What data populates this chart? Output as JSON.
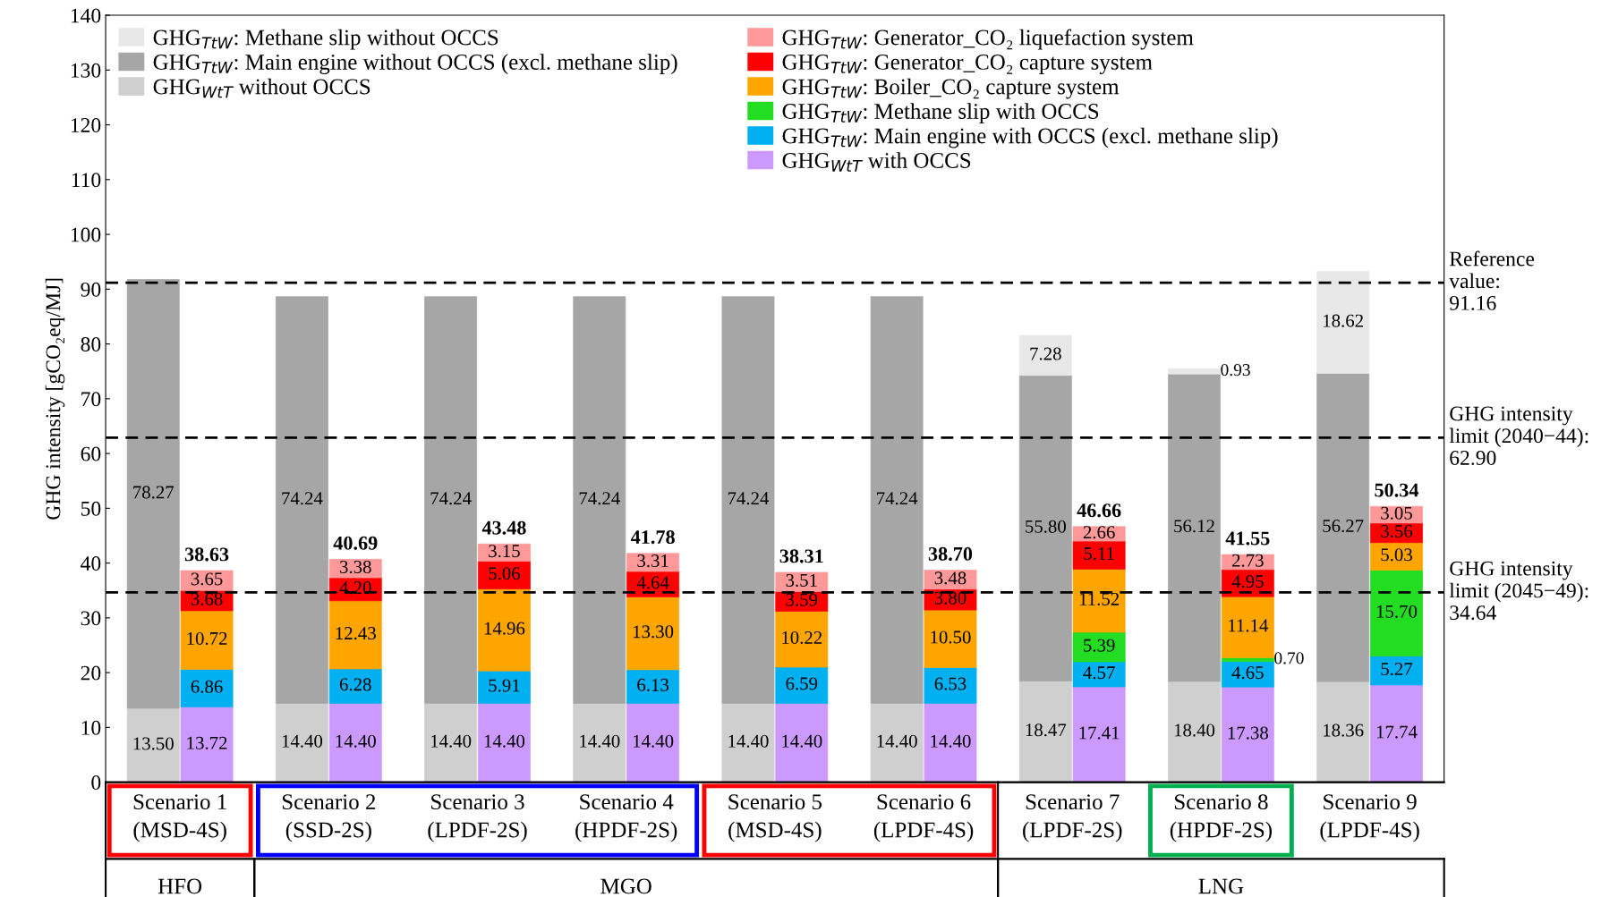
{
  "chart_data": {
    "type": "bar",
    "stacked": true,
    "ylabel": "GHG intensity [gCO₂eq/MJ]",
    "categories": [
      null,
      null,
      null,
      null,
      null,
      null,
      null,
      null,
      null,
      null,
      null,
      null,
      null,
      null,
      null,
      null,
      null,
      null
    ],
    "series": [
      {
        "name": "GHG$_{WtT}$ without OCCS",
        "color": "#cfcfcf",
        "values": [
          13.5,
          null,
          14.4,
          null,
          14.4,
          null,
          14.4,
          null,
          14.4,
          null,
          14.4,
          null,
          18.47,
          null,
          18.4,
          null,
          18.36,
          null
        ],
        "value_labels": [
          "13.50",
          null,
          "14.40",
          null,
          "14.40",
          null,
          "14.40",
          null,
          "14.40",
          null,
          "14.40",
          null,
          "18.47",
          null,
          "18.40",
          null,
          "18.36",
          null
        ]
      },
      {
        "name": "GHG$_{TtW}$: Main engine without OCCS (excl. methane slip)",
        "color": "#a6a6a6",
        "values": [
          78.27,
          null,
          74.24,
          null,
          74.24,
          null,
          74.24,
          null,
          74.24,
          null,
          74.24,
          null,
          55.8,
          null,
          56.12,
          null,
          56.27,
          null
        ],
        "value_labels": [
          "78.27",
          null,
          "74.24",
          null,
          "74.24",
          null,
          "74.24",
          null,
          "74.24",
          null,
          "74.24",
          null,
          "55.80",
          null,
          "56.12",
          null,
          "56.27",
          null
        ]
      },
      {
        "name": "GHG$_{TtW}$: Methane slip without OCCS",
        "color": "#e8e8e8",
        "values": [
          null,
          null,
          null,
          null,
          null,
          null,
          null,
          null,
          null,
          null,
          null,
          null,
          7.28,
          null,
          0.93,
          null,
          18.62,
          null
        ],
        "value_labels": [
          null,
          null,
          null,
          null,
          null,
          null,
          null,
          null,
          null,
          null,
          null,
          null,
          "7.28",
          null,
          "0.93",
          null,
          "18.62",
          null
        ]
      },
      {
        "name": "GHG$_{WtT}$ with OCCS",
        "color": "#cc99ff",
        "values": [
          null,
          13.72,
          null,
          14.4,
          null,
          14.4,
          null,
          14.4,
          null,
          14.4,
          null,
          14.4,
          null,
          17.41,
          null,
          17.38,
          null,
          17.74
        ],
        "value_labels": [
          null,
          "13.72",
          null,
          "14.40",
          null,
          "14.40",
          null,
          "14.40",
          null,
          "14.40",
          null,
          "14.40",
          null,
          "17.41",
          null,
          "17.38",
          null,
          "17.74"
        ]
      },
      {
        "name": "GHG$_{TtW}$: Main engine with OCCS (excl. methane slip)",
        "color": "#00b0f0",
        "values": [
          null,
          6.86,
          null,
          6.28,
          null,
          5.91,
          null,
          6.13,
          null,
          6.59,
          null,
          6.53,
          null,
          4.57,
          null,
          4.65,
          null,
          5.27
        ],
        "value_labels": [
          null,
          "6.86",
          null,
          "6.28",
          null,
          "5.91",
          null,
          "6.13",
          null,
          "6.59",
          null,
          "6.53",
          null,
          "4.57",
          null,
          "4.65",
          null,
          "5.27"
        ]
      },
      {
        "name": "GHG$_{TtW}$: Methane slip with OCCS",
        "color": "#22dd22",
        "values": [
          null,
          null,
          null,
          null,
          null,
          null,
          null,
          null,
          null,
          null,
          null,
          null,
          null,
          5.39,
          null,
          0.7,
          null,
          15.7
        ],
        "value_labels": [
          null,
          null,
          null,
          null,
          null,
          null,
          null,
          null,
          null,
          null,
          null,
          null,
          null,
          "5.39",
          null,
          "0.70",
          null,
          "15.70"
        ]
      },
      {
        "name": "GHG$_{TtW}$: Boiler_CO₂ capture system",
        "color": "#ffa500",
        "values": [
          null,
          10.72,
          null,
          12.43,
          null,
          14.96,
          null,
          13.3,
          null,
          10.22,
          null,
          10.5,
          null,
          11.52,
          null,
          11.14,
          null,
          5.03
        ],
        "value_labels": [
          null,
          "10.72",
          null,
          "12.43",
          null,
          "14.96",
          null,
          "13.30",
          null,
          "10.22",
          null,
          "10.50",
          null,
          "11.52",
          null,
          "11.14",
          null,
          "5.03"
        ]
      },
      {
        "name": "GHG$_{TtW}$: Generator_CO₂ capture system",
        "color": "#ff0000",
        "values": [
          null,
          3.68,
          null,
          4.2,
          null,
          5.06,
          null,
          4.64,
          null,
          3.59,
          null,
          3.8,
          null,
          5.11,
          null,
          4.95,
          null,
          3.56
        ],
        "value_labels": [
          null,
          "3.68",
          null,
          "4.20",
          null,
          "5.06",
          null,
          "4.64",
          null,
          "3.59",
          null,
          "3.80",
          null,
          "5.11",
          null,
          "4.95",
          null,
          "3.56"
        ]
      },
      {
        "name": "GHG$_{TtW}$: Generator_CO₂ liquefaction system",
        "color": "#ff9999",
        "values": [
          null,
          3.65,
          null,
          3.38,
          null,
          3.15,
          null,
          3.31,
          null,
          3.51,
          null,
          3.48,
          null,
          2.66,
          null,
          2.73,
          null,
          3.05
        ],
        "value_labels": [
          null,
          "3.65",
          null,
          "3.38",
          null,
          "3.15",
          null,
          "3.31",
          null,
          "3.51",
          null,
          "3.48",
          null,
          "2.66",
          null,
          "2.73",
          null,
          "3.05"
        ]
      }
    ],
    "totals": [
      null,
      "38.63",
      null,
      "40.69",
      null,
      "43.48",
      null,
      "41.78",
      null,
      "38.31",
      null,
      "38.70",
      null,
      "46.66",
      null,
      "41.55",
      null,
      "50.34"
    ],
    "ylim": [
      0,
      140
    ],
    "yticks": [
      0,
      10,
      20,
      30,
      40,
      50,
      60,
      70,
      80,
      90,
      100,
      110,
      120,
      130,
      140
    ],
    "ref_lines": [
      {
        "axis": "y",
        "value": 91.16,
        "label": "Reference\nvalue:\n91.16",
        "color": "#000000",
        "line_style": "dashed"
      },
      {
        "axis": "y",
        "value": 62.9,
        "label": "GHG intensity\nlimit (2040−44):\n62.90",
        "color": "#000000",
        "line_style": "dashed"
      },
      {
        "axis": "y",
        "value": 34.64,
        "label": "GHG intensity\nlimit (2045−49):\n34.64",
        "color": "#000000",
        "line_style": "dashed"
      }
    ],
    "annotations": [
      "Scenario 1\n(MSD-4S)",
      "Scenario 2\n(SSD-2S)",
      "Scenario 3\n(LPDF-2S)",
      "Scenario 4\n(HPDF-2S)",
      "Scenario 5\n(MSD-4S)",
      "Scenario 6\n(LPDF-4S)",
      "Scenario 7\n(LPDF-2S)",
      "Scenario 8\n(HPDF-2S)",
      "Scenario 9\n(LPDF-4S)",
      "HFO",
      "MGO",
      "LNG"
    ],
    "legend": "top",
    "grid": false
  }
}
